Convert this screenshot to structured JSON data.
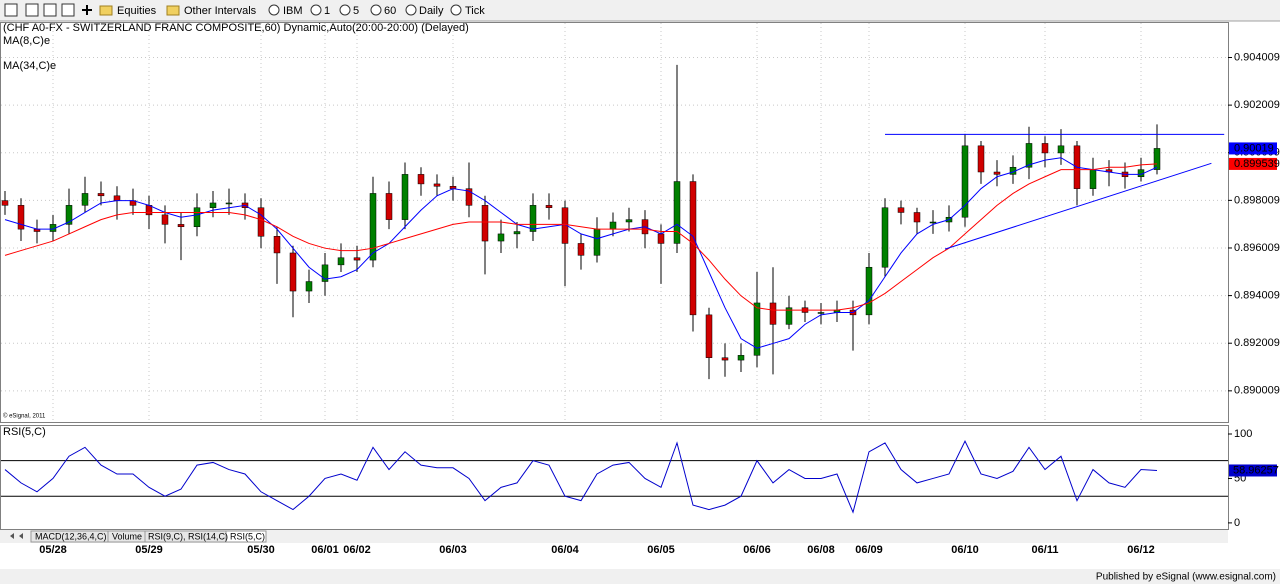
{
  "toolbar": {
    "items": [
      "Equities",
      "Other Intervals",
      "IBM",
      "1",
      "5",
      "60",
      "Daily",
      "Tick"
    ]
  },
  "chart_data": [
    {
      "type": "candlestick",
      "title": "(CHF A0-FX - SWITZERLAND FRANC COMPOSITE,60) Dynamic,Auto(20:00-20:00) (Delayed)",
      "copyright": "© eSignal, 2011",
      "up_color": "#008000",
      "down_color": "#d00000",
      "categories": [
        null,
        null,
        null,
        "05/28",
        null,
        null,
        null,
        null,
        null,
        "05/29",
        null,
        null,
        null,
        null,
        null,
        null,
        "05/30",
        null,
        null,
        null,
        "06/01",
        null,
        "06/02",
        null,
        null,
        null,
        null,
        null,
        "06/03",
        null,
        null,
        null,
        null,
        null,
        null,
        "06/04",
        null,
        null,
        null,
        null,
        null,
        "06/05",
        null,
        null,
        null,
        null,
        null,
        "06/06",
        null,
        null,
        null,
        "06/08",
        null,
        null,
        "06/09",
        null,
        null,
        null,
        null,
        null,
        "06/10",
        null,
        null,
        null,
        null,
        "06/11",
        null,
        null,
        null,
        null,
        null,
        "06/12",
        null
      ],
      "open": [
        0.898,
        0.8978,
        0.8968,
        0.8967,
        0.897,
        0.8978,
        0.8983,
        0.8982,
        0.898,
        0.8978,
        0.8974,
        0.897,
        0.8969,
        0.8977,
        0.8979,
        0.8979,
        0.8977,
        0.8965,
        0.8958,
        0.8942,
        0.8946,
        0.8953,
        0.8956,
        0.8955,
        0.8983,
        0.8972,
        0.8991,
        0.8987,
        0.8986,
        0.8985,
        0.8978,
        0.8963,
        0.8966,
        0.8967,
        0.8978,
        0.8977,
        0.8962,
        0.8957,
        0.8968,
        0.8971,
        0.8972,
        0.8966,
        0.8962,
        0.8988,
        0.8932,
        0.8914,
        0.8913,
        0.8915,
        0.8937,
        0.8928,
        0.8935,
        0.8933,
        0.8933,
        0.8934,
        0.8932,
        0.8952,
        0.8977,
        0.8975,
        0.8971,
        0.8971,
        0.8973,
        0.9003,
        0.8992,
        0.8991,
        0.8994,
        0.9004,
        0.9,
        0.9003,
        0.8985,
        0.8993,
        0.8992,
        0.899,
        0.8993
      ],
      "high": [
        0.8984,
        0.8981,
        0.8972,
        0.8974,
        0.8985,
        0.899,
        0.8988,
        0.8986,
        0.8985,
        0.8982,
        0.8978,
        0.8975,
        0.8983,
        0.8984,
        0.8985,
        0.8983,
        0.8981,
        0.8969,
        0.8961,
        0.8951,
        0.8958,
        0.8962,
        0.8961,
        0.899,
        0.8988,
        0.8996,
        0.8994,
        0.8991,
        0.899,
        0.8996,
        0.8982,
        0.8972,
        0.8971,
        0.8983,
        0.8983,
        0.898,
        0.8966,
        0.8973,
        0.8975,
        0.8977,
        0.8976,
        0.897,
        0.9037,
        0.8991,
        0.8935,
        0.892,
        0.892,
        0.895,
        0.8952,
        0.894,
        0.8938,
        0.8937,
        0.8938,
        0.8938,
        0.8958,
        0.8981,
        0.898,
        0.8977,
        0.8976,
        0.8978,
        0.9008,
        0.9005,
        0.8997,
        0.8999,
        0.9011,
        0.9007,
        0.901,
        0.9005,
        0.8998,
        0.8997,
        0.8996,
        0.8998,
        0.9012
      ],
      "low": [
        0.8974,
        0.8963,
        0.8962,
        0.8963,
        0.8966,
        0.8975,
        0.8978,
        0.8972,
        0.8974,
        0.8968,
        0.8962,
        0.8955,
        0.8965,
        0.8973,
        0.8974,
        0.8972,
        0.896,
        0.8945,
        0.8931,
        0.8937,
        0.894,
        0.895,
        0.895,
        0.8952,
        0.8968,
        0.8968,
        0.8982,
        0.8982,
        0.898,
        0.8973,
        0.8949,
        0.8958,
        0.896,
        0.8963,
        0.8972,
        0.8944,
        0.8951,
        0.8954,
        0.8965,
        0.8967,
        0.896,
        0.8945,
        0.8958,
        0.8925,
        0.8905,
        0.8906,
        0.8908,
        0.891,
        0.8907,
        0.8926,
        0.8929,
        0.8928,
        0.8929,
        0.8917,
        0.8928,
        0.8948,
        0.897,
        0.8966,
        0.8966,
        0.8967,
        0.8969,
        0.8987,
        0.8986,
        0.8987,
        0.8989,
        0.8994,
        0.8995,
        0.8978,
        0.8982,
        0.8986,
        0.8985,
        0.8988,
        0.8991
      ],
      "close": [
        0.8978,
        0.8968,
        0.8967,
        0.897,
        0.8978,
        0.8983,
        0.8982,
        0.898,
        0.8978,
        0.8974,
        0.897,
        0.8969,
        0.8977,
        0.8979,
        0.8979,
        0.8977,
        0.8965,
        0.8958,
        0.8942,
        0.8946,
        0.8953,
        0.8956,
        0.8955,
        0.8983,
        0.8972,
        0.8991,
        0.8987,
        0.8986,
        0.8985,
        0.8978,
        0.8963,
        0.8966,
        0.8967,
        0.8978,
        0.8977,
        0.8962,
        0.8957,
        0.8968,
        0.8971,
        0.8972,
        0.8966,
        0.8962,
        0.8988,
        0.8932,
        0.8914,
        0.8913,
        0.8915,
        0.8937,
        0.8928,
        0.8935,
        0.8933,
        0.8933,
        0.8934,
        0.8932,
        0.8952,
        0.8977,
        0.8975,
        0.8971,
        0.8971,
        0.8973,
        0.9003,
        0.8992,
        0.8991,
        0.8994,
        0.9004,
        0.9,
        0.9003,
        0.8985,
        0.8993,
        0.8992,
        0.899,
        0.8993,
        0.90019
      ],
      "series": [
        {
          "name": "MA(8,C)e",
          "color": "#0000ff",
          "values": [
            0.8972,
            0.897,
            0.8968,
            0.8968,
            0.8971,
            0.8975,
            0.8979,
            0.898,
            0.898,
            0.8978,
            0.8975,
            0.8973,
            0.8974,
            0.8976,
            0.8977,
            0.8978,
            0.8974,
            0.8968,
            0.896,
            0.8952,
            0.8947,
            0.8948,
            0.8951,
            0.8958,
            0.8962,
            0.8969,
            0.8976,
            0.8982,
            0.8985,
            0.8984,
            0.898,
            0.8975,
            0.897,
            0.8968,
            0.8969,
            0.897,
            0.8966,
            0.8964,
            0.8966,
            0.8968,
            0.8969,
            0.8966,
            0.897,
            0.8965,
            0.895,
            0.8935,
            0.8922,
            0.8918,
            0.892,
            0.8922,
            0.8928,
            0.8932,
            0.8933,
            0.8933,
            0.8938,
            0.8948,
            0.8958,
            0.8966,
            0.897,
            0.8972,
            0.8978,
            0.8985,
            0.899,
            0.8992,
            0.8995,
            0.8997,
            0.8998,
            0.8994,
            0.8993,
            0.8992,
            0.8991,
            0.8991,
            0.8994
          ]
        },
        {
          "name": "MA(34,C)e",
          "color": "#ff0000",
          "values": [
            0.8957,
            0.8959,
            0.8961,
            0.8963,
            0.8966,
            0.8969,
            0.8972,
            0.8974,
            0.8975,
            0.8975,
            0.8975,
            0.8975,
            0.8975,
            0.8975,
            0.8975,
            0.8974,
            0.8972,
            0.8969,
            0.8965,
            0.8962,
            0.896,
            0.8959,
            0.8959,
            0.896,
            0.8962,
            0.8964,
            0.8966,
            0.8968,
            0.897,
            0.8971,
            0.8971,
            0.8971,
            0.897,
            0.897,
            0.897,
            0.897,
            0.8969,
            0.8968,
            0.8968,
            0.8968,
            0.8968,
            0.8967,
            0.8967,
            0.8962,
            0.8955,
            0.8947,
            0.894,
            0.8935,
            0.8934,
            0.8934,
            0.8934,
            0.8934,
            0.8934,
            0.8935,
            0.8937,
            0.8941,
            0.8946,
            0.8951,
            0.8956,
            0.896,
            0.8966,
            0.8972,
            0.8978,
            0.8983,
            0.8987,
            0.899,
            0.8993,
            0.8993,
            0.8993,
            0.8994,
            0.8994,
            0.8995,
            0.899539
          ]
        }
      ],
      "trendlines": [
        {
          "x": [
            55,
            76.2
          ],
          "y": [
            0.90078,
            0.90078
          ],
          "color": "#0000ff"
        },
        {
          "x": [
            58.75,
            75.4
          ],
          "y": [
            0.89596,
            0.899565
          ],
          "color": "#0000ff"
        }
      ],
      "ylim": [
        0.8887,
        0.9055
      ],
      "yticks": [
        0.890009,
        0.892009,
        0.894009,
        0.896009,
        0.898009,
        0.900009,
        0.902009,
        0.904009
      ],
      "grid": true
    },
    {
      "type": "line",
      "series": [
        {
          "name": "RSI(5,C)",
          "color": "#0000cc",
          "values": [
            60,
            45,
            35,
            50,
            75,
            85,
            65,
            55,
            55,
            40,
            30,
            38,
            65,
            68,
            60,
            55,
            35,
            25,
            15,
            30,
            50,
            55,
            48,
            85,
            60,
            80,
            65,
            62,
            62,
            50,
            25,
            40,
            45,
            70,
            65,
            30,
            25,
            55,
            65,
            68,
            50,
            40,
            90,
            20,
            15,
            20,
            30,
            70,
            45,
            60,
            50,
            50,
            55,
            12,
            80,
            90,
            60,
            45,
            50,
            55,
            92,
            55,
            50,
            58,
            85,
            60,
            75,
            25,
            60,
            45,
            40,
            60,
            58.96257
          ]
        }
      ],
      "levels": [
        30,
        70
      ],
      "ylim": [
        -8,
        109
      ],
      "yticks": [
        0,
        50,
        100
      ],
      "grid": true
    }
  ],
  "tabs": [
    "MACD(12,36,4,C)",
    "Volume",
    "RSI(9,C), RSI(14,C)",
    "RSI(5,C)"
  ],
  "footer": "Published by eSignal (www.esignal.com)"
}
